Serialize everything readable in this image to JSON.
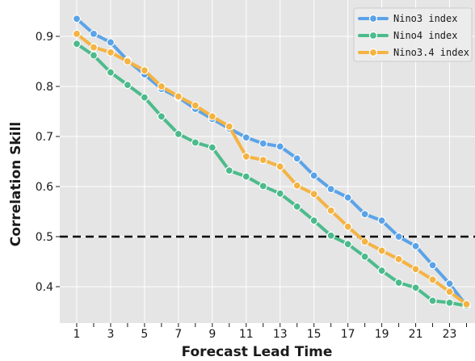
{
  "chart_data": {
    "type": "line",
    "xlabel": "Forecast Lead Time",
    "ylabel": "Correlation Skill",
    "x": [
      1,
      2,
      3,
      4,
      5,
      6,
      7,
      8,
      9,
      10,
      11,
      12,
      13,
      14,
      15,
      16,
      17,
      18,
      19,
      20,
      21,
      22,
      23,
      24
    ],
    "xlim": [
      0,
      24.5
    ],
    "ylim": [
      0.35,
      0.95
    ],
    "x_ticks": [
      1,
      3,
      5,
      7,
      9,
      11,
      13,
      15,
      17,
      19,
      21,
      23
    ],
    "y_ticks": [
      0.4,
      0.5,
      0.6,
      0.7,
      0.8,
      0.9
    ],
    "y_tick_labels": [
      "0.4",
      "0.5",
      "0.6",
      "0.7",
      "0.8",
      "0.9"
    ],
    "grid": true,
    "legend_position": "top-right",
    "reference_line": {
      "y": 0.5,
      "style": "dashed",
      "color": "#000000"
    },
    "series": [
      {
        "name": "Nino3 index",
        "color": "#5aa3e8",
        "values": [
          0.935,
          0.905,
          0.888,
          0.852,
          0.824,
          0.795,
          0.778,
          0.755,
          0.735,
          0.716,
          0.698,
          0.686,
          0.68,
          0.656,
          0.622,
          0.595,
          0.578,
          0.545,
          0.532,
          0.5,
          0.481,
          0.443,
          0.406,
          0.362
        ]
      },
      {
        "name": "Nino4 index",
        "color": "#4cbb8c",
        "values": [
          0.885,
          0.862,
          0.828,
          0.803,
          0.778,
          0.74,
          0.705,
          0.688,
          0.678,
          0.632,
          0.62,
          0.601,
          0.586,
          0.56,
          0.532,
          0.502,
          0.485,
          0.46,
          0.432,
          0.408,
          0.398,
          0.372,
          0.368,
          0.362
        ]
      },
      {
        "name": "Nino3.4 index",
        "color": "#f5b342",
        "values": [
          0.905,
          0.878,
          0.868,
          0.85,
          0.832,
          0.8,
          0.78,
          0.762,
          0.74,
          0.72,
          0.66,
          0.653,
          0.64,
          0.602,
          0.585,
          0.552,
          0.52,
          0.49,
          0.472,
          0.455,
          0.435,
          0.414,
          0.39,
          0.365
        ]
      }
    ]
  }
}
